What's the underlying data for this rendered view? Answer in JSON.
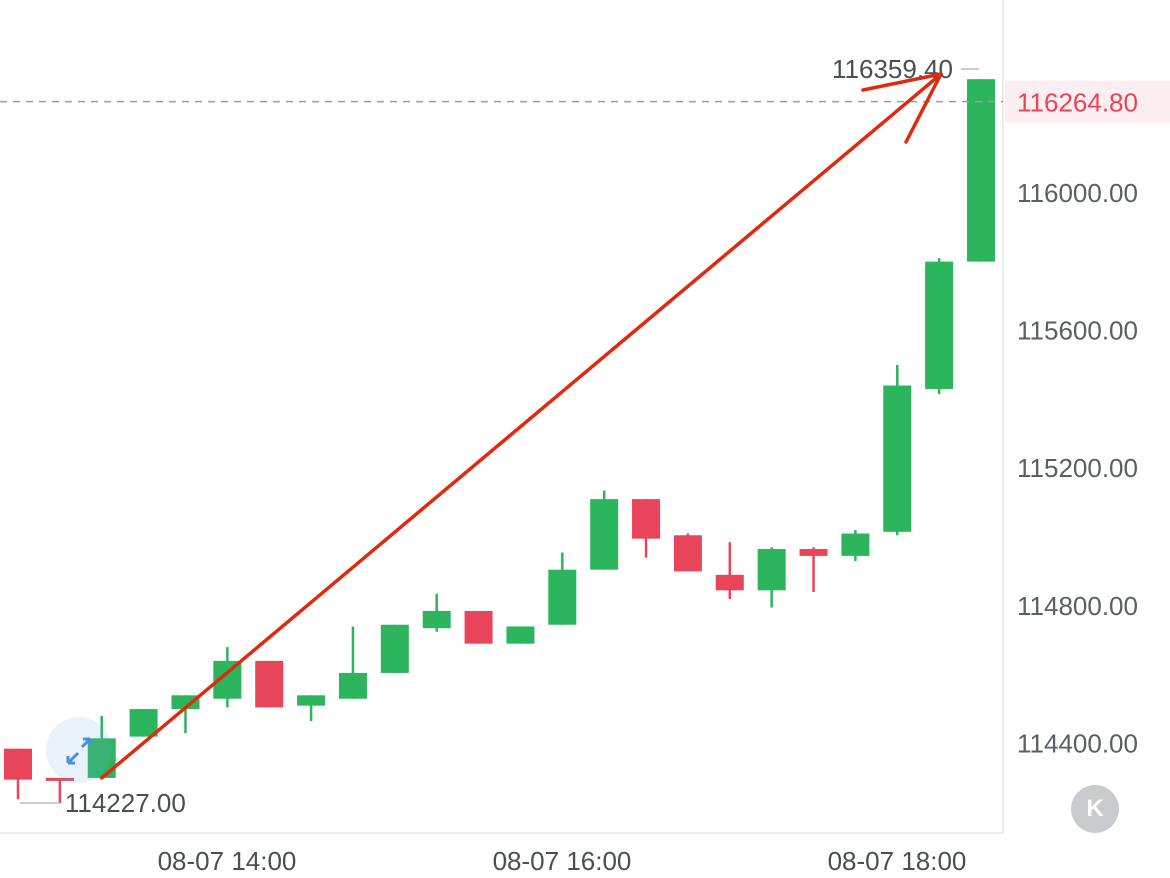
{
  "chart_data": {
    "type": "candlestick",
    "y_axis": {
      "ticks": [
        "116000.00",
        "115600.00",
        "115200.00",
        "114800.00",
        "114400.00"
      ],
      "ylim": [
        114140,
        116560
      ],
      "position": "right"
    },
    "x_axis": {
      "ticks": [
        "08-07 14:00",
        "08-07 16:00",
        "08-07 18:00"
      ]
    },
    "last_price": {
      "value": 116264.8,
      "label": "116264.80"
    },
    "high_marker": {
      "value": 116359.4,
      "label": "116359.40"
    },
    "low_marker": {
      "value": 114227.0,
      "label": "114227.00"
    },
    "colors": {
      "up": "#2db55d",
      "down": "#e8455a",
      "arrow": "#e02a10",
      "last_price": "#e8455a"
    },
    "candles": [
      {
        "o": 114385,
        "h": 114385,
        "l": 114238,
        "c": 114295
      },
      {
        "o": 114300,
        "h": 114300,
        "l": 114227,
        "c": 114295
      },
      {
        "o": 114300,
        "h": 114480,
        "l": 114300,
        "c": 114415
      },
      {
        "o": 114420,
        "h": 114500,
        "l": 114420,
        "c": 114500
      },
      {
        "o": 114500,
        "h": 114540,
        "l": 114430,
        "c": 114540
      },
      {
        "o": 114530,
        "h": 114680,
        "l": 114505,
        "c": 114640
      },
      {
        "o": 114640,
        "h": 114640,
        "l": 114505,
        "c": 114505
      },
      {
        "o": 114510,
        "h": 114540,
        "l": 114465,
        "c": 114540
      },
      {
        "o": 114530,
        "h": 114740,
        "l": 114530,
        "c": 114605
      },
      {
        "o": 114605,
        "h": 114745,
        "l": 114605,
        "c": 114745
      },
      {
        "o": 114735,
        "h": 114835,
        "l": 114725,
        "c": 114785
      },
      {
        "o": 114785,
        "h": 114785,
        "l": 114690,
        "c": 114690
      },
      {
        "o": 114690,
        "h": 114740,
        "l": 114690,
        "c": 114740
      },
      {
        "o": 114745,
        "h": 114955,
        "l": 114745,
        "c": 114905
      },
      {
        "o": 114905,
        "h": 115135,
        "l": 114905,
        "c": 115110
      },
      {
        "o": 115110,
        "h": 115110,
        "l": 114940,
        "c": 114995
      },
      {
        "o": 115005,
        "h": 115010,
        "l": 114900,
        "c": 114900
      },
      {
        "o": 114890,
        "h": 114985,
        "l": 114820,
        "c": 114845
      },
      {
        "o": 114845,
        "h": 114970,
        "l": 114795,
        "c": 114965
      },
      {
        "o": 114965,
        "h": 114970,
        "l": 114840,
        "c": 114945
      },
      {
        "o": 114945,
        "h": 115020,
        "l": 114930,
        "c": 115010
      },
      {
        "o": 115015,
        "h": 115500,
        "l": 115005,
        "c": 115440
      },
      {
        "o": 115430,
        "h": 115810,
        "l": 115415,
        "c": 115800
      },
      {
        "o": 115800,
        "h": 116330,
        "l": 115800,
        "c": 116330
      }
    ],
    "arrow": {
      "from": {
        "candle": 2,
        "price": 114300
      },
      "to": {
        "candle": 23,
        "price": 116345
      }
    }
  },
  "controls": {
    "k_button_label": "K"
  }
}
